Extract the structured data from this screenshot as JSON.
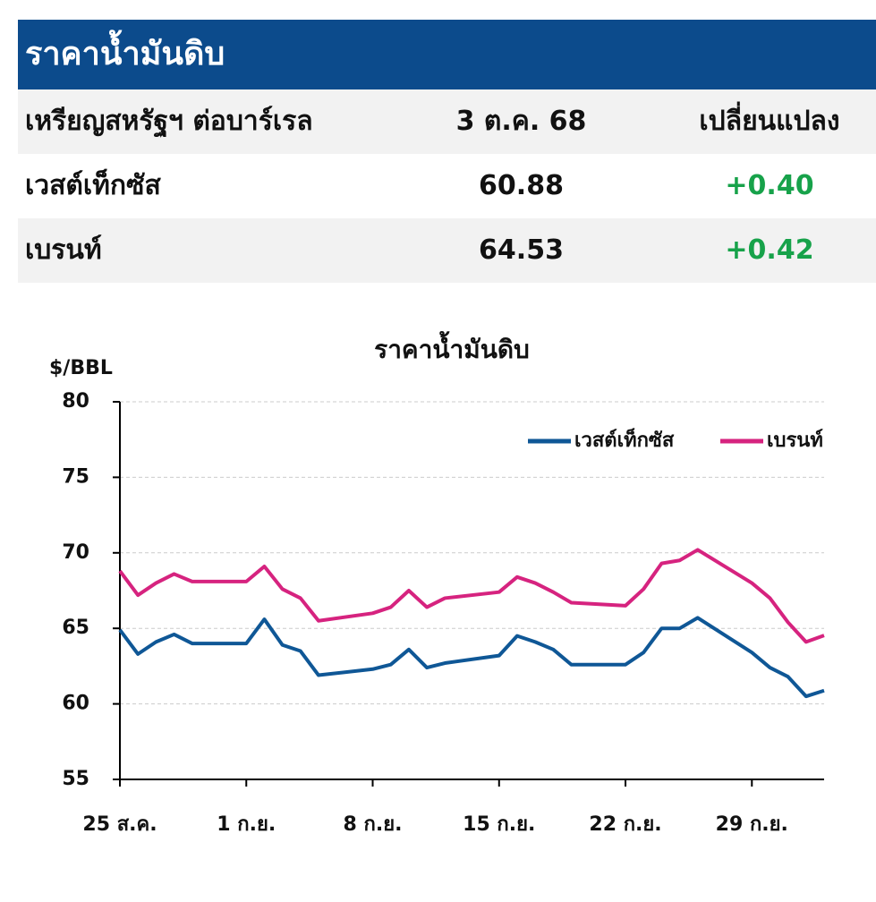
{
  "header": {
    "title": "ราคาน้ำมันดิบ"
  },
  "table": {
    "columns": [
      "เหรียญสหรัฐฯ ต่อบาร์เรล",
      "3 ต.ค. 68",
      "เปลี่ยนแปลง"
    ],
    "rows": [
      [
        "เวสต์เท็กซัส",
        "60.88",
        "+0.40"
      ],
      [
        "เบรนท์",
        "64.53",
        "+0.42"
      ]
    ]
  },
  "chart_data": {
    "type": "line",
    "title": "ราคาน้ำมันดิบ",
    "y_label": "$/BBL",
    "x": [
      0,
      1,
      2,
      3,
      4,
      7,
      8,
      9,
      10,
      11,
      14,
      15,
      16,
      17,
      18,
      21,
      22,
      23,
      24,
      25,
      28,
      29,
      30,
      31,
      32,
      35,
      36,
      37,
      38,
      39
    ],
    "xlim": [
      0,
      39
    ],
    "xticks": [
      {
        "value": 0,
        "label": "25 ส.ค."
      },
      {
        "value": 7,
        "label": "1 ก.ย."
      },
      {
        "value": 14,
        "label": "8 ก.ย."
      },
      {
        "value": 21,
        "label": "15 ก.ย."
      },
      {
        "value": 28,
        "label": "22 ก.ย."
      },
      {
        "value": 35,
        "label": "29 ก.ย."
      }
    ],
    "ylim": [
      55,
      80
    ],
    "yticks": [
      55,
      60,
      65,
      70,
      75,
      80
    ],
    "grid": true,
    "legend": "top-right",
    "series": [
      {
        "name": "เวสต์เท็กซัส",
        "color": "#0f5796",
        "values": [
          64.9,
          63.3,
          64.1,
          64.6,
          64.0,
          64.0,
          65.6,
          63.9,
          63.5,
          61.9,
          62.3,
          62.6,
          63.6,
          62.4,
          62.7,
          63.2,
          64.5,
          64.1,
          63.6,
          62.6,
          62.6,
          63.4,
          65.0,
          65.0,
          65.7,
          63.4,
          62.4,
          61.8,
          60.5,
          60.88
        ]
      },
      {
        "name": "เบรนท์",
        "color": "#d6237f",
        "values": [
          68.8,
          67.2,
          68.0,
          68.6,
          68.1,
          68.1,
          69.1,
          67.6,
          67.0,
          65.5,
          66.0,
          66.4,
          67.5,
          66.4,
          67.0,
          67.4,
          68.4,
          68.0,
          67.4,
          66.7,
          66.5,
          67.6,
          69.3,
          69.5,
          70.2,
          68.0,
          67.0,
          65.4,
          64.1,
          64.53
        ]
      }
    ]
  }
}
